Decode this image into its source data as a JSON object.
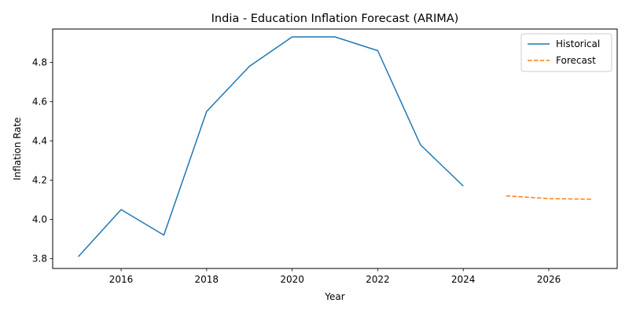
{
  "chart_data": {
    "type": "line",
    "title": "India - Education Inflation Forecast (ARIMA)",
    "xlabel": "Year",
    "ylabel": "Inflation Rate",
    "xlim": [
      2014.4,
      2027.6
    ],
    "ylim": [
      3.75,
      4.97
    ],
    "xticks": [
      2016,
      2018,
      2020,
      2022,
      2024,
      2026
    ],
    "yticks": [
      3.8,
      4.0,
      4.2,
      4.4,
      4.6,
      4.8
    ],
    "ytick_labels": [
      "3.8",
      "4.0",
      "4.2",
      "4.4",
      "4.6",
      "4.8"
    ],
    "grid": false,
    "legend_position": "top-right",
    "series": [
      {
        "name": "Historical",
        "color": "#1f77b4",
        "style": "solid",
        "x": [
          2015,
          2016,
          2017,
          2018,
          2019,
          2020,
          2021,
          2022,
          2023,
          2024
        ],
        "y": [
          3.81,
          4.05,
          3.92,
          4.55,
          4.78,
          4.93,
          4.93,
          4.86,
          4.38,
          4.17
        ]
      },
      {
        "name": "Forecast",
        "color": "#ff7f0e",
        "style": "dashed",
        "x": [
          2025,
          2026,
          2027
        ],
        "y": [
          4.12,
          4.106,
          4.103
        ]
      }
    ]
  }
}
